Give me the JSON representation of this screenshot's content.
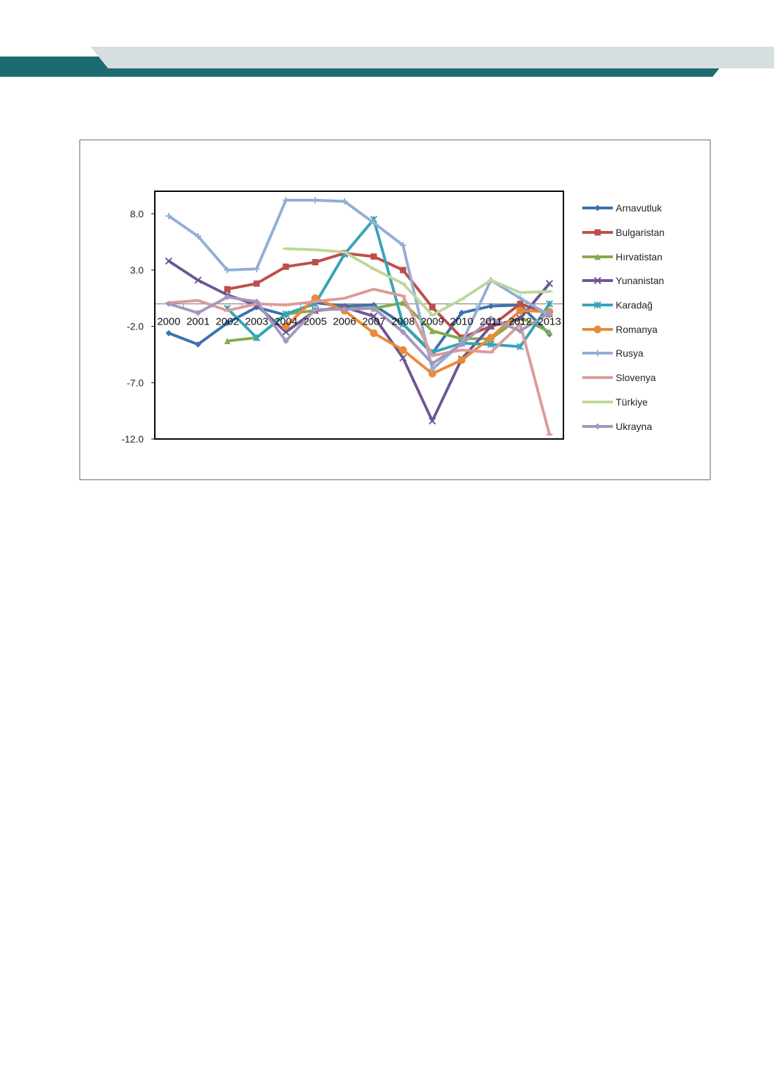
{
  "colors": {
    "header_dark": "#1b6b70",
    "header_light": "#d6dedf"
  },
  "chart_data": {
    "type": "line",
    "categories": [
      "2000",
      "2001",
      "2002",
      "2003",
      "2004",
      "2005",
      "2006",
      "2007",
      "2008",
      "2009",
      "2010",
      "2011",
      "2012",
      "2013"
    ],
    "y_ticks": [
      "8.0",
      "3.0",
      "-2.0",
      "-7.0",
      "-12.0"
    ],
    "ylim": [
      -12,
      10
    ],
    "grid": false,
    "legend_position": "right",
    "series": [
      {
        "name": "Arnavutluk",
        "color": "#3a72ae",
        "marker": "diamond",
        "values": [
          -2.6,
          -3.6,
          -1.7,
          -0.3,
          -1.0,
          0.1,
          -0.2,
          -0.1,
          -1.8,
          -4.4,
          -0.8,
          -0.2,
          -0.1,
          -2.7
        ]
      },
      {
        "name": "Bulgaristan",
        "color": "#bd4e49",
        "marker": "square",
        "values": [
          null,
          null,
          1.3,
          1.8,
          3.3,
          3.7,
          4.5,
          4.2,
          3.0,
          -0.3,
          -3.0,
          -2.0,
          0.0,
          -0.9
        ]
      },
      {
        "name": "Hırvatistan",
        "color": "#86aa4c",
        "marker": "triangle",
        "values": [
          null,
          null,
          -3.3,
          -3.0,
          -0.9,
          -0.6,
          -0.4,
          -0.4,
          0.1,
          -2.4,
          -3.1,
          -3.1,
          -1.2,
          -2.5
        ]
      },
      {
        "name": "Yunanistan",
        "color": "#6e5596",
        "marker": "x",
        "values": [
          3.8,
          2.1,
          0.8,
          -0.1,
          -2.5,
          -0.6,
          -0.3,
          -1.1,
          -4.8,
          -10.4,
          -4.9,
          -2.0,
          -1.3,
          1.8
        ]
      },
      {
        "name": "Karadağ",
        "color": "#36a4b7",
        "marker": "star",
        "values": [
          null,
          null,
          -0.4,
          -3.0,
          -0.9,
          0.0,
          4.4,
          7.5,
          -1.8,
          -4.3,
          -3.5,
          -3.6,
          -3.8,
          0.0
        ]
      },
      {
        "name": "Romanya",
        "color": "#ea8a38",
        "marker": "circle",
        "values": [
          null,
          null,
          null,
          null,
          -2.0,
          0.5,
          -0.6,
          -2.6,
          -4.1,
          -6.2,
          -5.0,
          -3.0,
          -0.6,
          -0.7
        ]
      },
      {
        "name": "Rusya",
        "color": "#92aed7",
        "marker": "plus",
        "values": [
          7.8,
          6.0,
          3.0,
          3.1,
          9.2,
          9.2,
          9.1,
          7.2,
          5.2,
          -5.8,
          -3.5,
          2.1,
          0.5,
          -1.0
        ]
      },
      {
        "name": "Slovenya",
        "color": "#dd9b99",
        "marker": "dash",
        "values": [
          0.1,
          0.3,
          -0.6,
          0.0,
          -0.1,
          0.2,
          0.5,
          1.3,
          0.7,
          -4.6,
          -4.1,
          -4.3,
          -1.8,
          -11.6
        ]
      },
      {
        "name": "Türkiye",
        "color": "#bcd898",
        "marker": "dash",
        "values": [
          null,
          null,
          null,
          null,
          4.9,
          4.8,
          4.6,
          3.1,
          1.8,
          -1.0,
          0.4,
          2.1,
          1.0,
          1.1
        ]
      },
      {
        "name": "Ukrayna",
        "color": "#a597be",
        "marker": "diamond",
        "values": [
          0.0,
          -0.8,
          0.6,
          0.2,
          -3.3,
          -0.5,
          -0.5,
          -0.4,
          -2.5,
          -5.3,
          -3.6,
          -1.3,
          -2.4,
          -0.8
        ]
      }
    ]
  }
}
